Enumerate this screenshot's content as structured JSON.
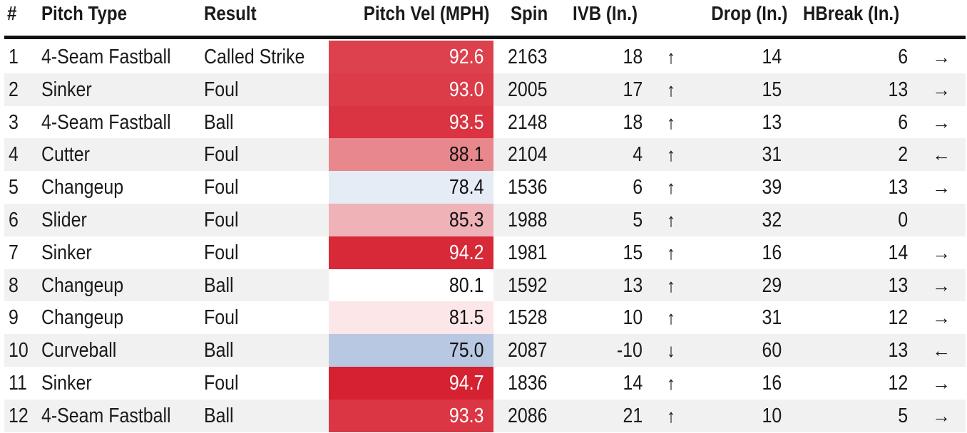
{
  "headers": {
    "num": "#",
    "pitch_type": "Pitch Type",
    "result": "Result",
    "velocity": "Pitch Vel (MPH)",
    "spin": "Spin",
    "ivb": "IVB (In.)",
    "drop": "Drop (In.)",
    "hbreak": "HBreak (In.)"
  },
  "colors": {
    "velocity_scale": [
      "#b8c8e3",
      "#e6ecf6",
      "#ffffff",
      "#fce6e8",
      "#efb3b7",
      "#e8888d",
      "#dc3b48",
      "#d52130"
    ]
  },
  "rows": [
    {
      "num": "1",
      "pitch_type": "4-Seam Fastball",
      "result": "Called Strike",
      "velocity": "92.6",
      "spin": "2163",
      "ivb": "18",
      "ivb_arrow": "↑",
      "drop": "14",
      "hbreak": "6",
      "hbreak_arrow": "→"
    },
    {
      "num": "2",
      "pitch_type": "Sinker",
      "result": "Foul",
      "velocity": "93.0",
      "spin": "2005",
      "ivb": "17",
      "ivb_arrow": "↑",
      "drop": "15",
      "hbreak": "13",
      "hbreak_arrow": "→"
    },
    {
      "num": "3",
      "pitch_type": "4-Seam Fastball",
      "result": "Ball",
      "velocity": "93.5",
      "spin": "2148",
      "ivb": "18",
      "ivb_arrow": "↑",
      "drop": "13",
      "hbreak": "6",
      "hbreak_arrow": "→"
    },
    {
      "num": "4",
      "pitch_type": "Cutter",
      "result": "Foul",
      "velocity": "88.1",
      "spin": "2104",
      "ivb": "4",
      "ivb_arrow": "↑",
      "drop": "31",
      "hbreak": "2",
      "hbreak_arrow": "←"
    },
    {
      "num": "5",
      "pitch_type": "Changeup",
      "result": "Foul",
      "velocity": "78.4",
      "spin": "1536",
      "ivb": "6",
      "ivb_arrow": "↑",
      "drop": "39",
      "hbreak": "13",
      "hbreak_arrow": "→"
    },
    {
      "num": "6",
      "pitch_type": "Slider",
      "result": "Foul",
      "velocity": "85.3",
      "spin": "1988",
      "ivb": "5",
      "ivb_arrow": "↑",
      "drop": "32",
      "hbreak": "0",
      "hbreak_arrow": ""
    },
    {
      "num": "7",
      "pitch_type": "Sinker",
      "result": "Foul",
      "velocity": "94.2",
      "spin": "1981",
      "ivb": "15",
      "ivb_arrow": "↑",
      "drop": "16",
      "hbreak": "14",
      "hbreak_arrow": "→"
    },
    {
      "num": "8",
      "pitch_type": "Changeup",
      "result": "Ball",
      "velocity": "80.1",
      "spin": "1592",
      "ivb": "13",
      "ivb_arrow": "↑",
      "drop": "29",
      "hbreak": "13",
      "hbreak_arrow": "→"
    },
    {
      "num": "9",
      "pitch_type": "Changeup",
      "result": "Foul",
      "velocity": "81.5",
      "spin": "1528",
      "ivb": "10",
      "ivb_arrow": "↑",
      "drop": "31",
      "hbreak": "12",
      "hbreak_arrow": "→"
    },
    {
      "num": "10",
      "pitch_type": "Curveball",
      "result": "Ball",
      "velocity": "75.0",
      "spin": "2087",
      "ivb": "-10",
      "ivb_arrow": "↓",
      "drop": "60",
      "hbreak": "13",
      "hbreak_arrow": "←"
    },
    {
      "num": "11",
      "pitch_type": "Sinker",
      "result": "Foul",
      "velocity": "94.7",
      "spin": "1836",
      "ivb": "14",
      "ivb_arrow": "↑",
      "drop": "16",
      "hbreak": "12",
      "hbreak_arrow": "→"
    },
    {
      "num": "12",
      "pitch_type": "4-Seam Fastball",
      "result": "Ball",
      "velocity": "93.3",
      "spin": "2086",
      "ivb": "21",
      "ivb_arrow": "↑",
      "drop": "10",
      "hbreak": "5",
      "hbreak_arrow": "→"
    }
  ]
}
